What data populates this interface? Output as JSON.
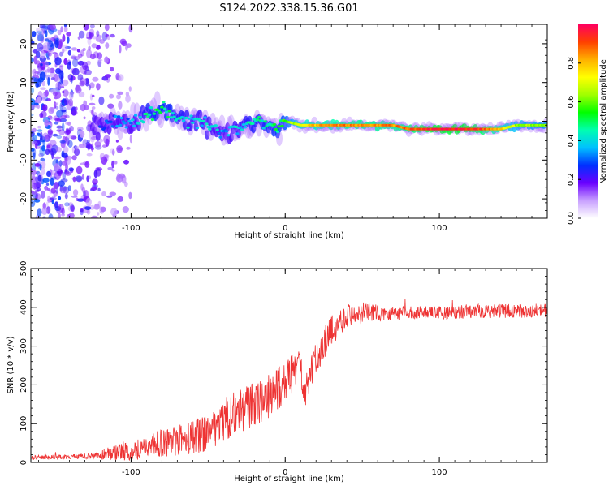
{
  "title": "S124.2022.338.15.36.G01",
  "chart_data": [
    {
      "type": "heatmap",
      "xlabel": "Height of straight line (km)",
      "ylabel": "Frequency (Hz)",
      "xlim": [
        -165,
        170
      ],
      "ylim": [
        -25,
        25
      ],
      "x_ticks": [
        -100,
        0,
        100
      ],
      "y_ticks": [
        -20,
        -10,
        0,
        10,
        20
      ],
      "colorbar": {
        "label": "Normalized spectral amplitude",
        "range": [
          0,
          1
        ],
        "ticks": [
          0.0,
          0.2,
          0.4,
          0.6,
          0.8
        ],
        "colors": [
          "#ffffff",
          "#c8a0ff",
          "#6a00ff",
          "#0030ff",
          "#00c0ff",
          "#00ffb0",
          "#00ff00",
          "#a0ff00",
          "#ffff00",
          "#ffb000",
          "#ff4000",
          "#ff0060"
        ]
      },
      "ridge": {
        "x": [
          -120,
          -110,
          -100,
          -90,
          -80,
          -70,
          -60,
          -50,
          -40,
          -35,
          -30,
          -20,
          -15,
          -10,
          -5,
          0,
          10,
          20,
          40,
          60,
          70,
          80,
          100,
          120,
          140,
          150,
          170
        ],
        "freq": [
          -1,
          0,
          -1,
          2,
          3,
          1,
          0,
          -1,
          -3,
          -2,
          -2,
          0,
          -1,
          -1,
          -2,
          0,
          -1,
          -1,
          -1,
          -1,
          -1,
          -2,
          -2,
          -2,
          -2,
          -1,
          -1
        ],
        "amplitude": [
          0.25,
          0.3,
          0.35,
          0.45,
          0.5,
          0.45,
          0.4,
          0.4,
          0.35,
          0.38,
          0.4,
          0.45,
          0.45,
          0.48,
          0.5,
          0.55,
          0.75,
          0.8,
          0.85,
          0.85,
          0.85,
          0.88,
          0.95,
          0.95,
          0.8,
          0.65,
          0.6
        ]
      }
    },
    {
      "type": "line",
      "xlabel": "Height of straight line (km)",
      "ylabel": "SNR (10 * v/v)",
      "xlim": [
        -165,
        170
      ],
      "ylim": [
        0,
        500
      ],
      "x_ticks": [
        -100,
        0,
        100
      ],
      "y_ticks": [
        0,
        100,
        200,
        300,
        400,
        500
      ],
      "series": [
        {
          "color": "#ee3333",
          "x": [
            -165,
            -140,
            -125,
            -120,
            -110,
            -100,
            -90,
            -80,
            -70,
            -60,
            -50,
            -40,
            -30,
            -20,
            -10,
            0,
            10,
            13,
            20,
            30,
            40,
            50,
            60,
            80,
            100,
            120,
            140,
            170
          ],
          "y": [
            12,
            15,
            15,
            20,
            25,
            30,
            40,
            50,
            55,
            65,
            80,
            110,
            130,
            150,
            170,
            210,
            250,
            180,
            270,
            340,
            380,
            385,
            385,
            385,
            385,
            390,
            390,
            392
          ],
          "noise": [
            6,
            6,
            8,
            12,
            20,
            25,
            30,
            35,
            40,
            45,
            50,
            55,
            60,
            60,
            60,
            55,
            50,
            40,
            45,
            40,
            30,
            28,
            22,
            18,
            18,
            18,
            18,
            18
          ]
        }
      ]
    }
  ]
}
